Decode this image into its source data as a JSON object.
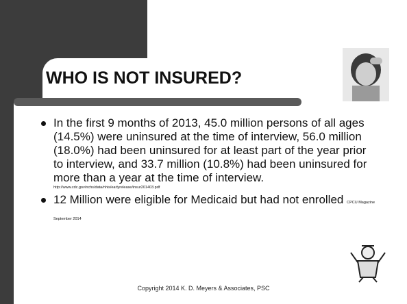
{
  "title": "WHO IS NOT INSURED?",
  "bullets": [
    {
      "text": "In the first 9 months of 2013, 45.0 million persons of all ages (14.5%) were uninsured at the time of interview, 56.0 million (18.0%) had been uninsured for at least part of the year prior to interview, and 33.7 million (10.8%) had been uninsured for more than a year at the time of interview.",
      "source": "http://www.cdc.gov/nchs/data/nhis/earlyrelease/insur201403.pdf"
    },
    {
      "text": "12 Million were eligible for Medicaid but had not enrolled",
      "source": "CPCU Magazine September 2014"
    }
  ],
  "footer": "Copyright 2014 K. D. Meyers & Associates, PSC"
}
